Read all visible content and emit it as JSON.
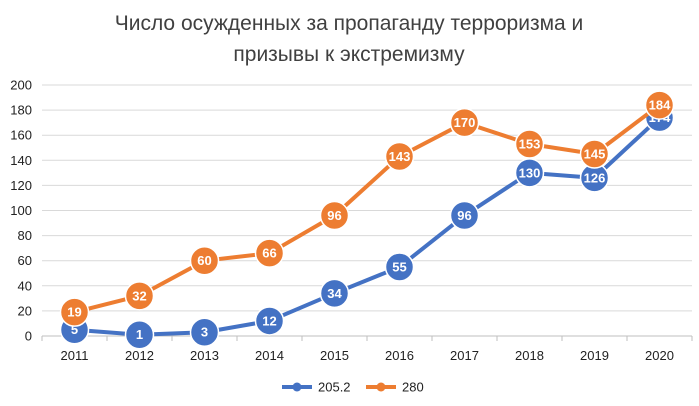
{
  "chart_data": {
    "type": "line",
    "title_lines": [
      "Число осужденных за пропаганду терроризма и",
      "призывы к экстремизму"
    ],
    "categories": [
      "2011",
      "2012",
      "2013",
      "2014",
      "2015",
      "2016",
      "2017",
      "2018",
      "2019",
      "2020"
    ],
    "series": [
      {
        "name": "205.2",
        "color": "#4472C4",
        "values": [
          5,
          1,
          3,
          12,
          34,
          55,
          96,
          130,
          126,
          174
        ]
      },
      {
        "name": "280",
        "color": "#ED7D31",
        "values": [
          19,
          32,
          60,
          66,
          96,
          143,
          170,
          153,
          145,
          184
        ]
      }
    ],
    "ylim": [
      0,
      200
    ],
    "yticks": [
      0,
      20,
      40,
      60,
      80,
      100,
      120,
      140,
      160,
      180,
      200
    ],
    "grid": true,
    "legend_position": "bottom"
  }
}
